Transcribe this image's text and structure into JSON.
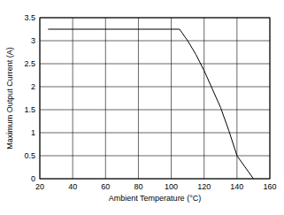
{
  "chart_data": {
    "type": "line",
    "x_label": "Ambient Temperature (°C)",
    "y_label": "Maximum Output Current (A)",
    "x": [
      25,
      105,
      110,
      115,
      120,
      125,
      130,
      135,
      140,
      145,
      150
    ],
    "values": [
      3.25,
      3.25,
      3.0,
      2.7,
      2.35,
      1.95,
      1.55,
      1.05,
      0.5,
      0.25,
      0
    ],
    "color": "#000000",
    "xlim": [
      20,
      160
    ],
    "xticks": [
      20,
      40,
      60,
      80,
      100,
      120,
      140,
      160
    ],
    "ylim": [
      0,
      3.5
    ],
    "yticks": [
      0,
      0.5,
      1,
      1.5,
      2,
      2.5,
      3,
      3.5
    ],
    "grid": true
  }
}
